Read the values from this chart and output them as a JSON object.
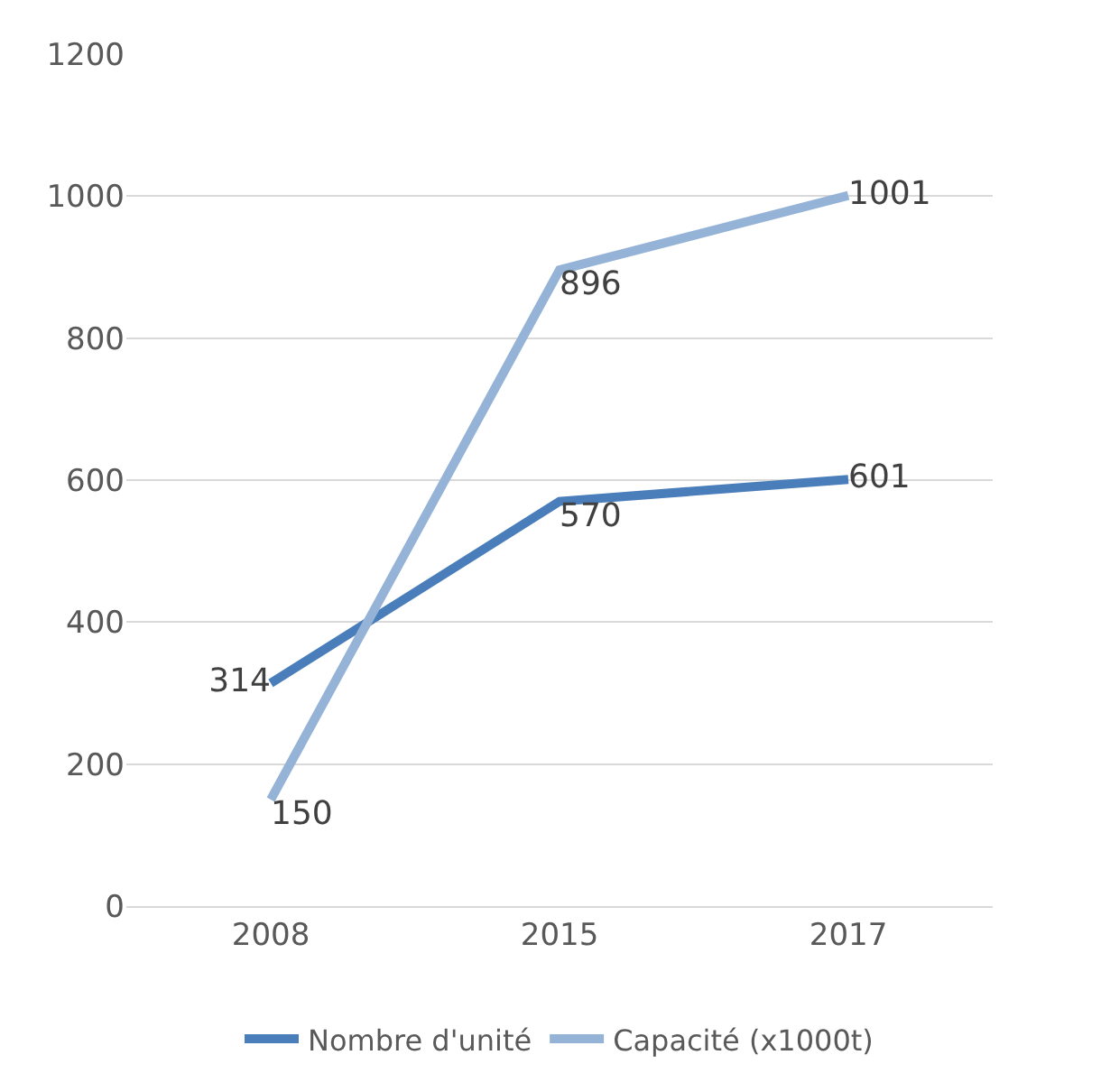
{
  "chart_data": {
    "type": "line",
    "categories": [
      "2008",
      "2015",
      "2017"
    ],
    "series": [
      {
        "name": "Nombre d'unité",
        "color": "#4a7ebb",
        "values": [
          314,
          570,
          601
        ]
      },
      {
        "name": "Capacité (x1000t)",
        "color": "#95b3d7",
        "values": [
          150,
          896,
          1001
        ]
      }
    ],
    "ylim": [
      0,
      1200
    ],
    "yticks": [
      0,
      200,
      400,
      600,
      800,
      1000,
      1200
    ],
    "grid": "y",
    "legend": "bottom",
    "data_labels": true,
    "marker": "none",
    "line_style": "solid"
  }
}
